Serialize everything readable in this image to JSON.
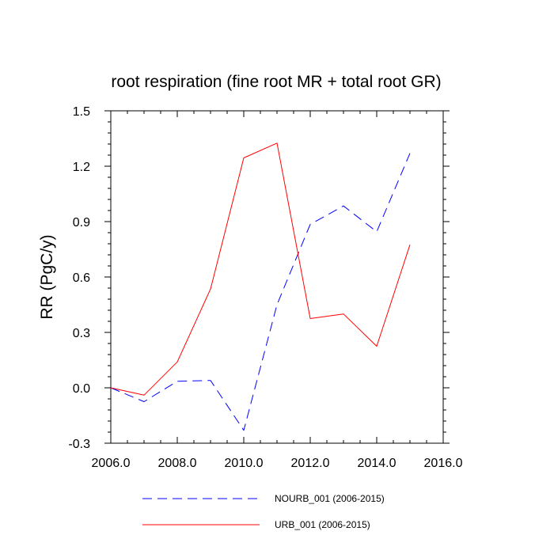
{
  "chart_data": {
    "type": "line",
    "title": "root respiration (fine root MR + total root GR)",
    "xlabel": "",
    "ylabel": "RR  (PgC/y)",
    "xlim": [
      2006.0,
      2016.0
    ],
    "ylim": [
      -0.3,
      1.5
    ],
    "xticks": [
      2006.0,
      2008.0,
      2010.0,
      2012.0,
      2014.0,
      2016.0
    ],
    "xtick_labels": [
      "2006.0",
      "2008.0",
      "2010.0",
      "2012.0",
      "2014.0",
      "2016.0"
    ],
    "yticks": [
      -0.3,
      0.0,
      0.3,
      0.6,
      0.9,
      1.2,
      1.5
    ],
    "ytick_labels": [
      "-0.3",
      "0.0",
      "0.3",
      "0.6",
      "0.9",
      "1.2",
      "1.5"
    ],
    "x": [
      2006,
      2007,
      2008,
      2009,
      2010,
      2011,
      2012,
      2013,
      2014,
      2015
    ],
    "series": [
      {
        "name": "NOURB_001 (2006-2015)",
        "color": "#0000ff",
        "dash": "dashed",
        "values": [
          0.0,
          -0.075,
          0.035,
          0.04,
          -0.23,
          0.45,
          0.885,
          0.985,
          0.845,
          1.27
        ]
      },
      {
        "name": "URB_001 (2006-2015)",
        "color": "#ff0000",
        "dash": "solid",
        "values": [
          0.0,
          -0.04,
          0.14,
          0.535,
          1.245,
          1.325,
          0.375,
          0.4,
          0.225,
          0.775
        ]
      }
    ],
    "legend": "bottom",
    "grid": false
  }
}
